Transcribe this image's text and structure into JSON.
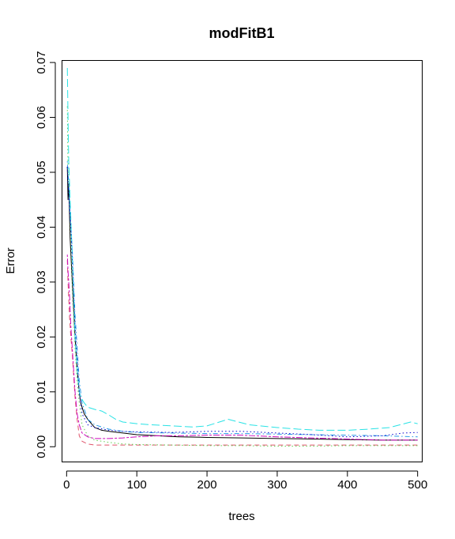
{
  "chart_data": {
    "type": "line",
    "title": "modFitB1",
    "xlabel": "trees",
    "ylabel": "Error",
    "xlim": [
      -6,
      506
    ],
    "ylim": [
      -0.0027,
      0.0703
    ],
    "x_ticks": [
      0,
      100,
      200,
      300,
      400,
      500
    ],
    "x_tick_labels": [
      "0",
      "100",
      "200",
      "300",
      "400",
      "500"
    ],
    "y_ticks": [
      0.0,
      0.01,
      0.02,
      0.03,
      0.04,
      0.05,
      0.06,
      0.07
    ],
    "y_tick_labels": [
      "0.00",
      "0.01",
      "0.02",
      "0.03",
      "0.04",
      "0.05",
      "0.06",
      "0.07"
    ],
    "legend": "none",
    "grid": false,
    "series": [
      {
        "color": "#000000",
        "dash": "solid",
        "points": [
          [
            1,
            0.051
          ],
          [
            2,
            0.045
          ],
          [
            3,
            0.048
          ],
          [
            5,
            0.038
          ],
          [
            8,
            0.03
          ],
          [
            10,
            0.025
          ],
          [
            12,
            0.02
          ],
          [
            15,
            0.014
          ],
          [
            18,
            0.01
          ],
          [
            20,
            0.008
          ],
          [
            25,
            0.006
          ],
          [
            30,
            0.005
          ],
          [
            40,
            0.0035
          ],
          [
            50,
            0.003
          ],
          [
            60,
            0.0028
          ],
          [
            80,
            0.0025
          ],
          [
            100,
            0.0022
          ],
          [
            130,
            0.002
          ],
          [
            160,
            0.0018
          ],
          [
            200,
            0.0017
          ],
          [
            250,
            0.0016
          ],
          [
            300,
            0.0015
          ],
          [
            350,
            0.0014
          ],
          [
            400,
            0.0013
          ],
          [
            450,
            0.0012
          ],
          [
            500,
            0.0012
          ]
        ]
      },
      {
        "color": "#DF536B",
        "dash": "dashed",
        "points": [
          [
            1,
            0.034
          ],
          [
            2,
            0.03
          ],
          [
            4,
            0.024
          ],
          [
            6,
            0.02
          ],
          [
            8,
            0.017
          ],
          [
            10,
            0.013
          ],
          [
            12,
            0.009
          ],
          [
            15,
            0.005
          ],
          [
            18,
            0.002
          ],
          [
            22,
            0.001
          ],
          [
            30,
            0.0005
          ],
          [
            40,
            0.0003
          ],
          [
            60,
            0.0003
          ],
          [
            100,
            0.0003
          ],
          [
            200,
            0.0003
          ],
          [
            300,
            0.0003
          ],
          [
            400,
            0.0003
          ],
          [
            500,
            0.0003
          ]
        ]
      },
      {
        "color": "#61D04F",
        "dash": "dotted",
        "points": [
          [
            1,
            0.062
          ],
          [
            2,
            0.05
          ],
          [
            4,
            0.045
          ],
          [
            6,
            0.038
          ],
          [
            8,
            0.03
          ],
          [
            10,
            0.024
          ],
          [
            12,
            0.018
          ],
          [
            15,
            0.012
          ],
          [
            18,
            0.008
          ],
          [
            22,
            0.004
          ],
          [
            30,
            0.002
          ],
          [
            40,
            0.0012
          ],
          [
            50,
            0.001
          ],
          [
            60,
            0.0008
          ],
          [
            80,
            0.0005
          ],
          [
            100,
            0.0004
          ],
          [
            150,
            0.0003
          ],
          [
            200,
            0.0002
          ],
          [
            250,
            0.0002
          ],
          [
            300,
            0.0001
          ],
          [
            350,
            0.0001
          ],
          [
            400,
            0.0002
          ],
          [
            450,
            0.0002
          ],
          [
            500,
            0.0002
          ]
        ]
      },
      {
        "color": "#2297E6",
        "dash": "dashdot",
        "points": [
          [
            1,
            0.052
          ],
          [
            2,
            0.05
          ],
          [
            3,
            0.048
          ],
          [
            5,
            0.042
          ],
          [
            8,
            0.036
          ],
          [
            10,
            0.03
          ],
          [
            12,
            0.024
          ],
          [
            15,
            0.018
          ],
          [
            18,
            0.012
          ],
          [
            22,
            0.008
          ],
          [
            30,
            0.005
          ],
          [
            40,
            0.004
          ],
          [
            60,
            0.0032
          ],
          [
            80,
            0.0028
          ],
          [
            100,
            0.0026
          ],
          [
            150,
            0.0025
          ],
          [
            200,
            0.0024
          ],
          [
            250,
            0.0024
          ],
          [
            300,
            0.0023
          ],
          [
            350,
            0.0022
          ],
          [
            400,
            0.0021
          ],
          [
            450,
            0.002
          ],
          [
            500,
            0.0018
          ]
        ]
      },
      {
        "color": "#28E2E5",
        "dash": "longdash",
        "points": [
          [
            1,
            0.069
          ],
          [
            2,
            0.06
          ],
          [
            3,
            0.052
          ],
          [
            5,
            0.045
          ],
          [
            8,
            0.035
          ],
          [
            10,
            0.028
          ],
          [
            12,
            0.02
          ],
          [
            15,
            0.014
          ],
          [
            18,
            0.01
          ],
          [
            20,
            0.009
          ],
          [
            25,
            0.008
          ],
          [
            30,
            0.0072
          ],
          [
            40,
            0.0068
          ],
          [
            50,
            0.0065
          ],
          [
            60,
            0.0058
          ],
          [
            70,
            0.005
          ],
          [
            80,
            0.0045
          ],
          [
            100,
            0.0042
          ],
          [
            120,
            0.004
          ],
          [
            150,
            0.0038
          ],
          [
            180,
            0.0036
          ],
          [
            200,
            0.0038
          ],
          [
            230,
            0.005
          ],
          [
            260,
            0.004
          ],
          [
            300,
            0.0035
          ],
          [
            330,
            0.0032
          ],
          [
            360,
            0.003
          ],
          [
            400,
            0.003
          ],
          [
            430,
            0.0032
          ],
          [
            460,
            0.0035
          ],
          [
            490,
            0.0045
          ],
          [
            500,
            0.0042
          ]
        ]
      },
      {
        "color": "#CD0BBC",
        "dash": "twodash",
        "points": [
          [
            1,
            0.035
          ],
          [
            2,
            0.032
          ],
          [
            4,
            0.028
          ],
          [
            6,
            0.022
          ],
          [
            8,
            0.018
          ],
          [
            10,
            0.014
          ],
          [
            12,
            0.01
          ],
          [
            15,
            0.006
          ],
          [
            18,
            0.004
          ],
          [
            22,
            0.0025
          ],
          [
            30,
            0.0018
          ],
          [
            40,
            0.0015
          ],
          [
            60,
            0.0015
          ],
          [
            80,
            0.0016
          ],
          [
            100,
            0.0018
          ],
          [
            130,
            0.002
          ],
          [
            160,
            0.002
          ],
          [
            200,
            0.0021
          ],
          [
            250,
            0.0021
          ],
          [
            300,
            0.0018
          ],
          [
            350,
            0.0016
          ],
          [
            400,
            0.0014
          ],
          [
            450,
            0.0012
          ],
          [
            500,
            0.0012
          ]
        ]
      },
      {
        "color": "#0000CD",
        "dash": "dotted",
        "points": [
          [
            1,
            0.051
          ],
          [
            2,
            0.048
          ],
          [
            4,
            0.044
          ],
          [
            6,
            0.04
          ],
          [
            8,
            0.034
          ],
          [
            10,
            0.028
          ],
          [
            12,
            0.022
          ],
          [
            15,
            0.016
          ],
          [
            18,
            0.01
          ],
          [
            22,
            0.006
          ],
          [
            30,
            0.004
          ],
          [
            40,
            0.0035
          ],
          [
            60,
            0.003
          ],
          [
            80,
            0.0028
          ],
          [
            100,
            0.0027
          ],
          [
            150,
            0.0026
          ],
          [
            200,
            0.0028
          ],
          [
            250,
            0.0028
          ],
          [
            300,
            0.0025
          ],
          [
            350,
            0.0022
          ],
          [
            400,
            0.0018
          ],
          [
            450,
            0.002
          ],
          [
            480,
            0.0025
          ],
          [
            500,
            0.0026
          ]
        ]
      }
    ]
  }
}
